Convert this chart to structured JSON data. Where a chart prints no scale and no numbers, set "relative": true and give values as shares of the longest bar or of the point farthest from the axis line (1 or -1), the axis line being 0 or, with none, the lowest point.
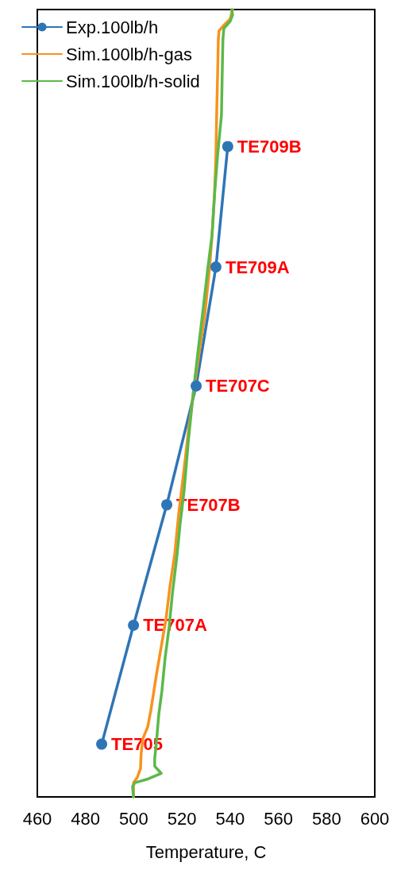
{
  "chart_data": {
    "type": "line",
    "relative": true,
    "xlabel": "Temperature, C",
    "xlim": [
      460,
      600
    ],
    "xticks": [
      460,
      480,
      500,
      520,
      540,
      560,
      580,
      600
    ],
    "grid": false,
    "legend": "top left",
    "line_style": "solid",
    "series": [
      {
        "name": "Exp.100lb/h",
        "color": "#2e75b6",
        "marker": "circle",
        "x": [
          486.7,
          499.9,
          513.7,
          525.9,
          534.1,
          539.0
        ],
        "values": [
          0.067,
          0.218,
          0.371,
          0.522,
          0.673,
          0.826
        ]
      },
      {
        "name": "Sim.100lb/h-gas",
        "color": "#f7931e",
        "marker": "none",
        "x": [
          499.9,
          499.9,
          501.5,
          502.8,
          503.1,
          503.8,
          505.8,
          507.1,
          509.4,
          511.7,
          513.4,
          515.0,
          517.0,
          518.6,
          520.6,
          522.9,
          525.2,
          527.5,
          529.5,
          531.5,
          532.5,
          533.5,
          534.1,
          534.4,
          534.8,
          535.1,
          535.4,
          537.4,
          540.0,
          541.0
        ],
        "values": [
          0,
          0.018,
          0.025,
          0.036,
          0.056,
          0.074,
          0.089,
          0.11,
          0.155,
          0.196,
          0.226,
          0.267,
          0.308,
          0.358,
          0.409,
          0.47,
          0.522,
          0.572,
          0.612,
          0.673,
          0.714,
          0.764,
          0.815,
          0.866,
          0.917,
          0.962,
          0.973,
          0.98,
          0.988,
          1
        ]
      },
      {
        "name": "Sim.100lb/h-solid",
        "color": "#5bb94a",
        "marker": "none",
        "x": [
          499.9,
          499.5,
          500.5,
          506.1,
          511.4,
          508.7,
          508.7,
          509.4,
          510.4,
          511.7,
          513.0,
          514.7,
          516.0,
          518.0,
          519.3,
          520.9,
          522.6,
          524.6,
          526.9,
          528.5,
          530.8,
          532.5,
          533.5,
          534.8,
          536.4,
          536.7,
          537.0,
          537.4,
          540.0,
          541.0,
          540.7
        ],
        "values": [
          0,
          0.013,
          0.018,
          0.023,
          0.03,
          0.039,
          0.049,
          0.069,
          0.105,
          0.135,
          0.176,
          0.216,
          0.257,
          0.308,
          0.348,
          0.389,
          0.45,
          0.511,
          0.572,
          0.612,
          0.673,
          0.714,
          0.764,
          0.815,
          0.866,
          0.917,
          0.962,
          0.976,
          0.985,
          0.993,
          1
        ]
      }
    ],
    "annotations": [
      {
        "text": "TE709B",
        "x": 539.0,
        "y": 0.826
      },
      {
        "text": "TE709A",
        "x": 534.1,
        "y": 0.673
      },
      {
        "text": "TE707C",
        "x": 525.9,
        "y": 0.522
      },
      {
        "text": "TE707B",
        "x": 513.7,
        "y": 0.371
      },
      {
        "text": "TE707A",
        "x": 499.9,
        "y": 0.218
      },
      {
        "text": "TE705",
        "x": 486.7,
        "y": 0.067
      }
    ]
  }
}
